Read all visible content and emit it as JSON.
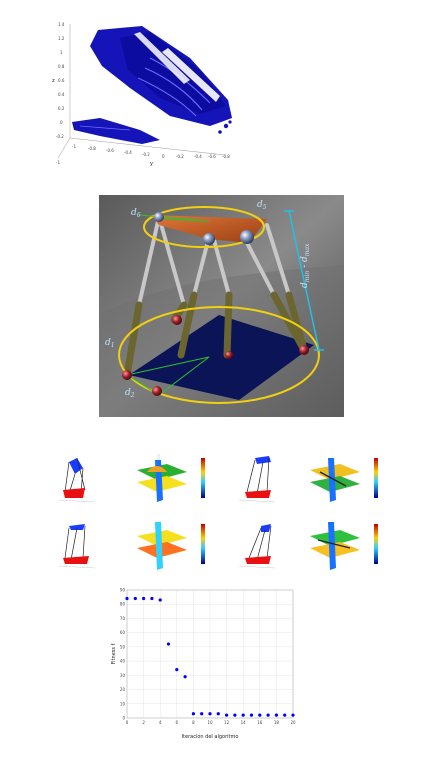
{
  "figure_top": {
    "y_ticks": [
      "1.4",
      "1.2",
      "1",
      "0.8",
      "0.6",
      "0.4",
      "0.2",
      "0",
      "-0.2"
    ],
    "x_ticks": [
      "-1",
      "-0.8",
      "-0.6",
      "-0.4",
      "-0.2",
      "0",
      "-0.2",
      "-0.4",
      "-0.6",
      "-0.8"
    ],
    "axis_z": "z",
    "axis_y": "y",
    "extra_tick": "-1",
    "colors": {
      "surface": "#1010b0",
      "surface_dark": "#00007a"
    }
  },
  "figure_robot": {
    "label_top": "d",
    "label_top_sub": "5",
    "label_top_left": "d",
    "label_top_left_sub": "6",
    "label_bottom_left": "d",
    "label_bottom_left_sub": "1",
    "label_bottom": "d",
    "label_bottom_sub": "2",
    "range_label": "d",
    "range_label_sub": "min",
    "range_label_mid": " - d",
    "range_label_sub2": "max",
    "colors": {
      "ring": "#f0d010",
      "platform": "#c85a1e",
      "range": "#22c0e8",
      "leg": "#6b6630"
    }
  },
  "chart_data": {
    "type": "scatter",
    "x": [
      0,
      1,
      2,
      3,
      4,
      5,
      6,
      7,
      8,
      9,
      10,
      11,
      12,
      13,
      14,
      15,
      16,
      17,
      18,
      19,
      20
    ],
    "y": [
      84,
      84,
      84,
      84,
      83,
      52,
      34,
      29,
      3,
      3,
      3,
      3,
      2,
      2,
      2,
      2,
      2,
      2,
      2,
      2,
      2
    ],
    "xlabel": "Iteración del algoritmo",
    "ylabel": "Fitness f",
    "xlim": [
      0,
      20
    ],
    "ylim": [
      0,
      90
    ],
    "x_ticks": [
      "0",
      "2",
      "4",
      "6",
      "8",
      "10",
      "12",
      "14",
      "16",
      "18",
      "20"
    ],
    "y_ticks": [
      "0",
      "10",
      "20",
      "30",
      "40",
      "50",
      "60",
      "70",
      "80",
      "90"
    ],
    "grid": true,
    "marker_color": "#0000ff"
  }
}
